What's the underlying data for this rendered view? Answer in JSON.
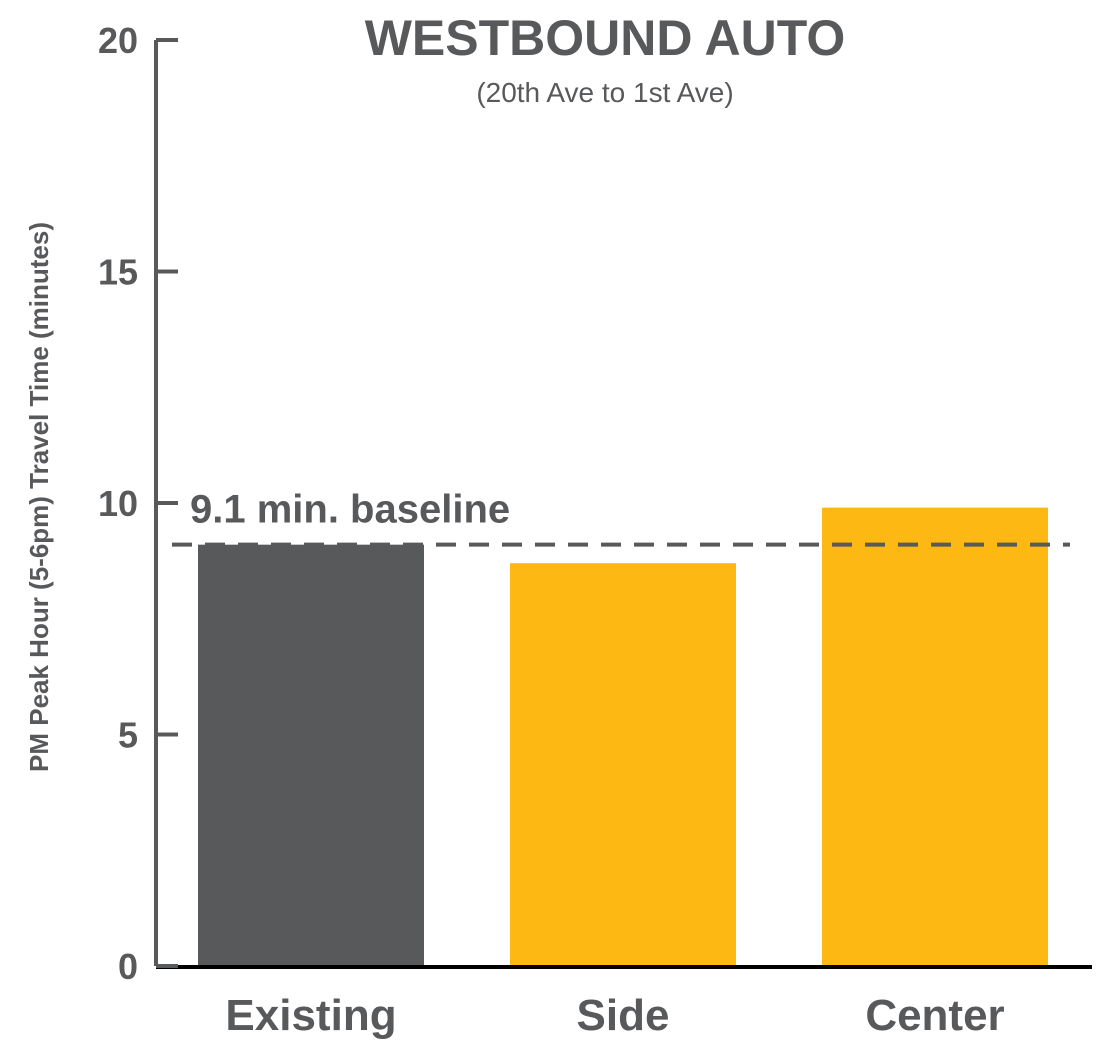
{
  "chart_data": {
    "type": "bar",
    "title": "WESTBOUND AUTO",
    "subtitle": "(20th Ave to 1st Ave)",
    "ylabel": "PM Peak Hour (5-6pm) Travel Time (minutes)",
    "xlabel": "",
    "categories": [
      "Existing",
      "Side",
      "Center"
    ],
    "values": [
      9.1,
      8.7,
      9.9
    ],
    "bar_colors": [
      "#58595b",
      "#fdb813",
      "#fdb813"
    ],
    "ylim": [
      0,
      20
    ],
    "yticks": [
      0,
      5,
      10,
      15,
      20
    ],
    "ytick_labels": [
      "0",
      "5",
      "10",
      "15",
      "20"
    ],
    "reference_line": {
      "value": 9.1,
      "label": "9.1 min. baseline",
      "style": "dashed",
      "color": "#58595b"
    },
    "grid": false,
    "legend": "none"
  }
}
